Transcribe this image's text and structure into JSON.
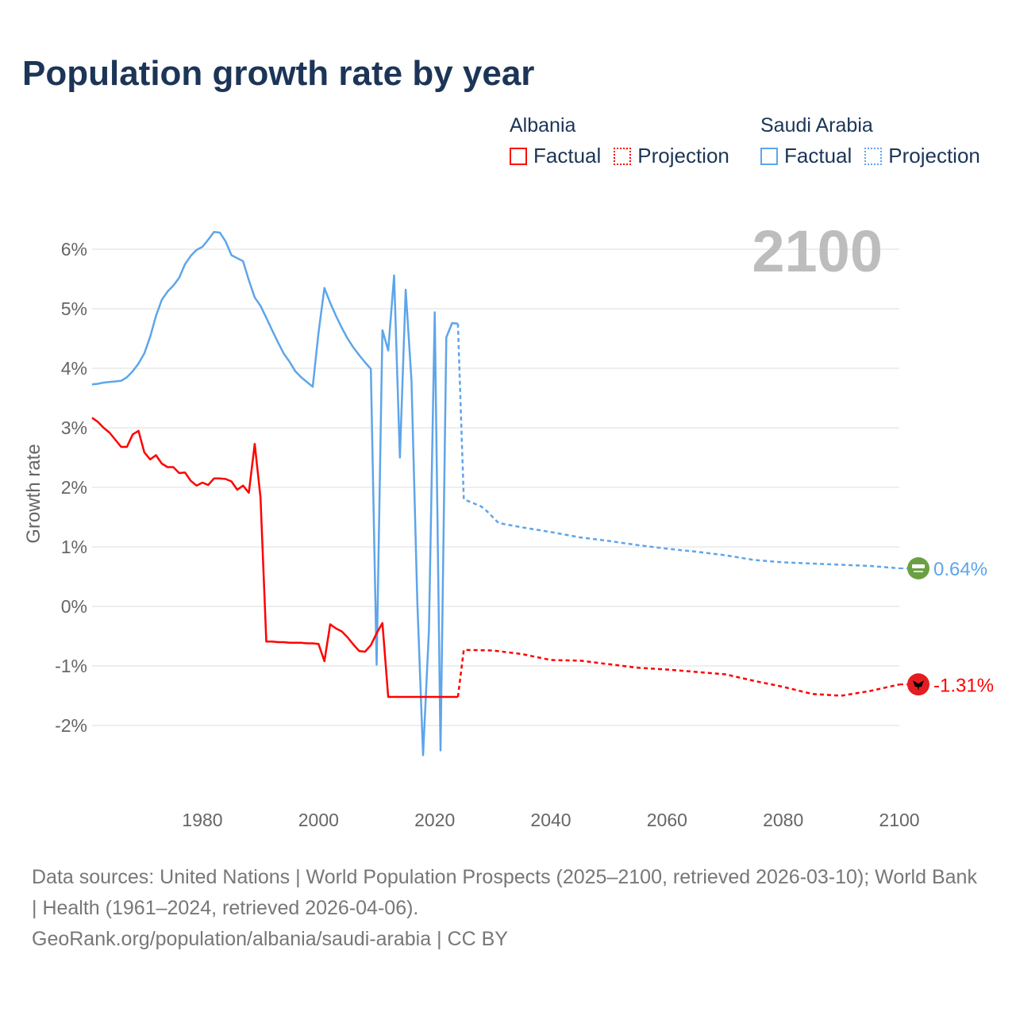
{
  "chart_data": {
    "type": "line",
    "title": "Population growth rate by year",
    "xlabel": "",
    "ylabel": "Growth rate",
    "xlim": [
      1961,
      2100
    ],
    "ylim": [
      -3,
      7
    ],
    "x_ticks": [
      1980,
      2000,
      2020,
      2040,
      2060,
      2080,
      2100
    ],
    "x_tick_labels": [
      "1980",
      "2000",
      "2020",
      "2040",
      "2060",
      "2080",
      "2100"
    ],
    "y_ticks": [
      -2,
      -1,
      0,
      1,
      2,
      3,
      4,
      5,
      6
    ],
    "y_tick_labels": [
      "-2%",
      "-1%",
      "0%",
      "1%",
      "2%",
      "3%",
      "4%",
      "5%",
      "6%"
    ],
    "grid": true,
    "year_watermark": "2100",
    "legend": {
      "placement": "top-right",
      "groups": [
        {
          "country": "Albania",
          "factual": "Factual",
          "projection": "Projection",
          "color": "#ff0000"
        },
        {
          "country": "Saudi Arabia",
          "factual": "Factual",
          "projection": "Projection",
          "color": "#5ea5ea"
        }
      ]
    },
    "series": [
      {
        "name": "Saudi Arabia",
        "color": "#5ea5ea",
        "end_label": "0.64%",
        "flag": "saudi-arabia-flag",
        "factual": [
          [
            1961,
            3.73
          ],
          [
            1962,
            3.74
          ],
          [
            1963,
            3.76
          ],
          [
            1964,
            3.77
          ],
          [
            1965,
            3.78
          ],
          [
            1966,
            3.79
          ],
          [
            1967,
            3.85
          ],
          [
            1968,
            3.95
          ],
          [
            1969,
            4.08
          ],
          [
            1970,
            4.25
          ],
          [
            1971,
            4.53
          ],
          [
            1972,
            4.88
          ],
          [
            1973,
            5.15
          ],
          [
            1974,
            5.29
          ],
          [
            1975,
            5.39
          ],
          [
            1976,
            5.52
          ],
          [
            1977,
            5.75
          ],
          [
            1978,
            5.89
          ],
          [
            1979,
            5.99
          ],
          [
            1980,
            6.04
          ],
          [
            1981,
            6.16
          ],
          [
            1982,
            6.29
          ],
          [
            1983,
            6.28
          ],
          [
            1984,
            6.13
          ],
          [
            1985,
            5.9
          ],
          [
            1986,
            5.85
          ],
          [
            1987,
            5.8
          ],
          [
            1988,
            5.48
          ],
          [
            1989,
            5.19
          ],
          [
            1990,
            5.05
          ],
          [
            1991,
            4.85
          ],
          [
            1992,
            4.64
          ],
          [
            1993,
            4.44
          ],
          [
            1994,
            4.25
          ],
          [
            1995,
            4.11
          ],
          [
            1996,
            3.95
          ],
          [
            1997,
            3.85
          ],
          [
            1998,
            3.77
          ],
          [
            1999,
            3.69
          ],
          [
            2000,
            4.6
          ],
          [
            2001,
            5.35
          ],
          [
            2002,
            5.1
          ],
          [
            2003,
            4.88
          ],
          [
            2004,
            4.68
          ],
          [
            2005,
            4.5
          ],
          [
            2006,
            4.35
          ],
          [
            2007,
            4.22
          ],
          [
            2008,
            4.1
          ],
          [
            2009,
            3.99
          ],
          [
            2010,
            -0.98
          ],
          [
            2011,
            4.64
          ],
          [
            2012,
            4.3
          ],
          [
            2013,
            5.56
          ],
          [
            2014,
            2.5
          ],
          [
            2015,
            5.32
          ],
          [
            2016,
            3.8
          ],
          [
            2017,
            0.1
          ],
          [
            2018,
            -2.5
          ],
          [
            2019,
            -0.4
          ],
          [
            2020,
            4.94
          ],
          [
            2021,
            -2.42
          ],
          [
            2022,
            4.52
          ],
          [
            2023,
            4.76
          ],
          [
            2024,
            4.75
          ]
        ],
        "projection": [
          [
            2024,
            4.75
          ],
          [
            2025,
            1.8
          ],
          [
            2027,
            1.72
          ],
          [
            2028,
            1.68
          ],
          [
            2029,
            1.6
          ],
          [
            2031,
            1.4
          ],
          [
            2035,
            1.33
          ],
          [
            2040,
            1.25
          ],
          [
            2045,
            1.16
          ],
          [
            2050,
            1.1
          ],
          [
            2055,
            1.03
          ],
          [
            2060,
            0.97
          ],
          [
            2065,
            0.92
          ],
          [
            2070,
            0.86
          ],
          [
            2075,
            0.78
          ],
          [
            2080,
            0.74
          ],
          [
            2085,
            0.72
          ],
          [
            2090,
            0.7
          ],
          [
            2095,
            0.68
          ],
          [
            2100,
            0.64
          ]
        ]
      },
      {
        "name": "Albania",
        "color": "#ff0000",
        "end_label": "-1.31%",
        "flag": "albania-flag",
        "factual": [
          [
            1961,
            3.17
          ],
          [
            1962,
            3.1
          ],
          [
            1963,
            3.0
          ],
          [
            1964,
            2.92
          ],
          [
            1965,
            2.8
          ],
          [
            1966,
            2.68
          ],
          [
            1967,
            2.68
          ],
          [
            1968,
            2.89
          ],
          [
            1969,
            2.95
          ],
          [
            1970,
            2.59
          ],
          [
            1971,
            2.47
          ],
          [
            1972,
            2.54
          ],
          [
            1973,
            2.4
          ],
          [
            1974,
            2.34
          ],
          [
            1975,
            2.34
          ],
          [
            1976,
            2.24
          ],
          [
            1977,
            2.25
          ],
          [
            1978,
            2.11
          ],
          [
            1979,
            2.03
          ],
          [
            1980,
            2.08
          ],
          [
            1981,
            2.04
          ],
          [
            1982,
            2.15
          ],
          [
            1983,
            2.15
          ],
          [
            1984,
            2.14
          ],
          [
            1985,
            2.1
          ],
          [
            1986,
            1.96
          ],
          [
            1987,
            2.03
          ],
          [
            1988,
            1.91
          ],
          [
            1989,
            2.73
          ],
          [
            1990,
            1.83
          ],
          [
            1991,
            -0.59
          ],
          [
            1992,
            -0.59
          ],
          [
            1993,
            -0.6
          ],
          [
            1994,
            -0.6
          ],
          [
            1995,
            -0.61
          ],
          [
            1996,
            -0.61
          ],
          [
            1997,
            -0.61
          ],
          [
            1998,
            -0.62
          ],
          [
            1999,
            -0.62
          ],
          [
            2000,
            -0.63
          ],
          [
            2001,
            -0.92
          ],
          [
            2002,
            -0.3
          ],
          [
            2003,
            -0.37
          ],
          [
            2004,
            -0.42
          ],
          [
            2005,
            -0.52
          ],
          [
            2006,
            -0.64
          ],
          [
            2007,
            -0.75
          ],
          [
            2008,
            -0.76
          ],
          [
            2009,
            -0.65
          ],
          [
            2010,
            -0.45
          ],
          [
            2011,
            -0.28
          ],
          [
            2012,
            -1.52
          ],
          [
            2013,
            -1.52
          ],
          [
            2014,
            -1.52
          ],
          [
            2015,
            -1.52
          ],
          [
            2016,
            -1.52
          ],
          [
            2017,
            -1.52
          ],
          [
            2018,
            -1.52
          ],
          [
            2019,
            -1.52
          ],
          [
            2020,
            -1.52
          ],
          [
            2021,
            -1.52
          ],
          [
            2022,
            -1.52
          ],
          [
            2023,
            -1.52
          ],
          [
            2024,
            -1.52
          ]
        ],
        "projection": [
          [
            2024,
            -1.52
          ],
          [
            2025,
            -0.73
          ],
          [
            2030,
            -0.74
          ],
          [
            2035,
            -0.8
          ],
          [
            2040,
            -0.9
          ],
          [
            2045,
            -0.91
          ],
          [
            2050,
            -0.97
          ],
          [
            2055,
            -1.03
          ],
          [
            2060,
            -1.06
          ],
          [
            2065,
            -1.1
          ],
          [
            2070,
            -1.14
          ],
          [
            2075,
            -1.25
          ],
          [
            2080,
            -1.35
          ],
          [
            2085,
            -1.47
          ],
          [
            2090,
            -1.5
          ],
          [
            2095,
            -1.42
          ],
          [
            2100,
            -1.31
          ]
        ]
      }
    ]
  },
  "footer": {
    "sources": "Data sources: United Nations | World Population Prospects (2025–2100, retrieved 2026-03-10); World Bank | Health (1961–2024, retrieved 2026-04-06).",
    "credit": "GeoRank.org/population/albania/saudi-arabia | CC BY"
  }
}
